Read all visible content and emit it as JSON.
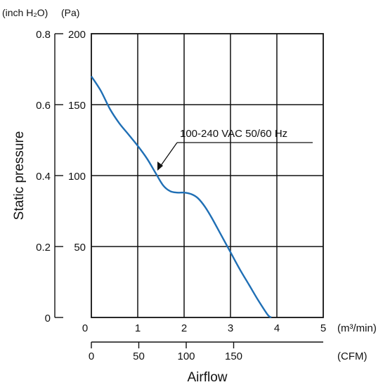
{
  "chart_data": {
    "type": "line",
    "unit_labels": {
      "left_axis_unit": "(inch H₂O)",
      "pa_axis_unit": "(Pa)"
    },
    "y_axis_label": "Static pressure",
    "x_axis_label": "Airflow",
    "x_unit_m3": "(m³/min)",
    "x_unit_cfm": "(CFM)",
    "inch_ticks": [
      "0.8",
      "0.6",
      "0.4",
      "0.2",
      "0"
    ],
    "pa_ticks": [
      "200",
      "150",
      "100",
      "50"
    ],
    "m3_ticks": [
      "0",
      "1",
      "2",
      "3",
      "4",
      "5"
    ],
    "cfm_ticks": [
      "0",
      "50",
      "100",
      "150"
    ],
    "curve_label": "100-240 VAC  50/60 Hz",
    "xlim_m3": [
      0,
      5
    ],
    "ylim_pa": [
      0,
      200
    ],
    "grid": true,
    "series": [
      {
        "color": "#1f6fb5",
        "x_m3": [
          0.0,
          0.2,
          0.4,
          0.6,
          0.8,
          1.0,
          1.2,
          1.4,
          1.55,
          1.7,
          1.85,
          2.0,
          2.15,
          2.3,
          2.45,
          2.6,
          2.8,
          3.0,
          3.2,
          3.4,
          3.6,
          3.8,
          3.88
        ],
        "y_pa": [
          170,
          160,
          147,
          137,
          129,
          121,
          112,
          101,
          93,
          89,
          88,
          88,
          87,
          84,
          78,
          70,
          58,
          46,
          34,
          23,
          12,
          2,
          0
        ]
      }
    ]
  }
}
